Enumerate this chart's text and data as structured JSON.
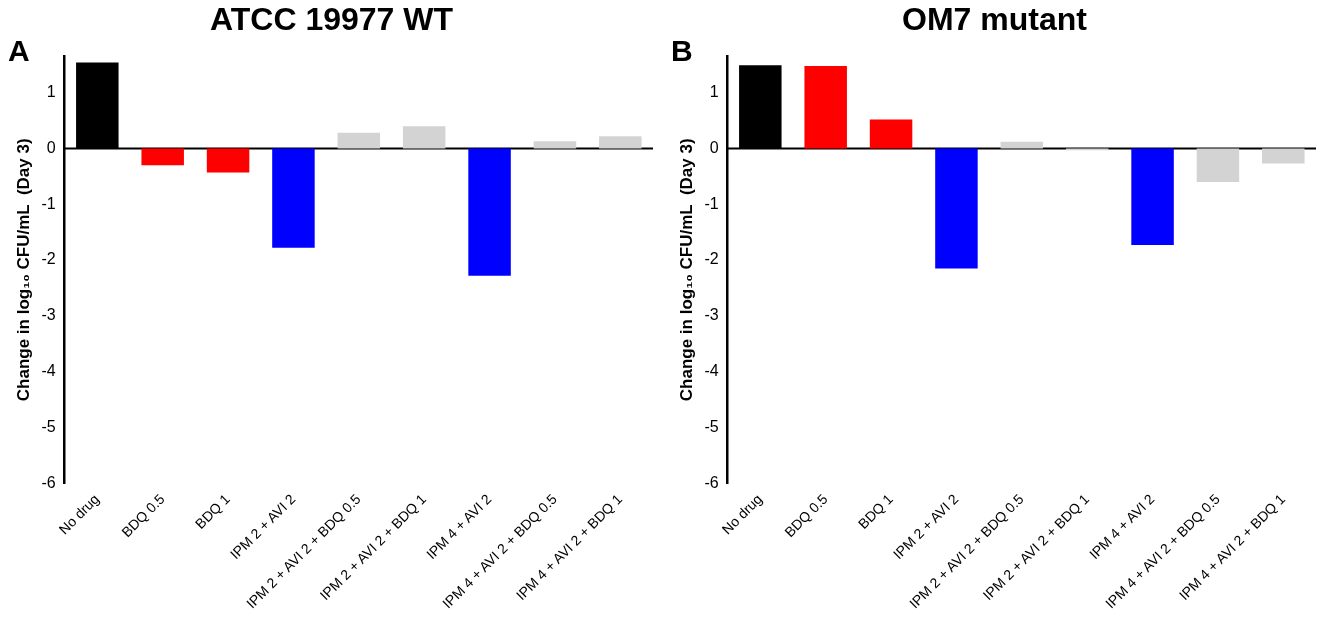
{
  "chart_data": [
    {
      "type": "bar",
      "title": "ATCC 19977 WT",
      "ylabel": "Change in log₁₀ CFU/mL  (Day 3)",
      "annotations": [
        "A"
      ],
      "categories": [
        "No drug",
        "BDQ 0.5",
        "BDQ 1",
        "IPM 2 + AVI 2",
        "IPM 2 + AVI 2 + BDQ 0.5",
        "IPM 2 + AVI 2 + BDQ 1",
        "IPM 4 + AVI 2",
        "IPM 4 + AVI 2 + BDQ 0.5",
        "IPM 4 + AVI 2 + BDQ 1"
      ],
      "values": [
        1.54,
        -0.3,
        -0.43,
        -1.78,
        0.28,
        0.4,
        -2.28,
        0.13,
        0.22
      ],
      "ref_lines": [
        {
          "axis": "y",
          "value": 0,
          "color": "#000000"
        }
      ],
      "colors": [
        "#000000",
        "#ff0000",
        "#ff0000",
        "#0000ff",
        "#d3d3d3",
        "#d3d3d3",
        "#0000ff",
        "#d3d3d3",
        "#d3d3d3"
      ],
      "ylim": [
        -6,
        1.65
      ],
      "yticks": [
        -6,
        -5,
        -4,
        -3,
        -2,
        -1,
        0,
        1
      ],
      "grid": false,
      "legend": false
    },
    {
      "type": "bar",
      "title": "OM7 mutant",
      "ylabel": "Change in log₁₀ CFU/mL  (Day 3)",
      "annotations": [
        "B"
      ],
      "categories": [
        "No drug",
        "BDQ 0.5",
        "BDQ 1",
        "IPM 2 + AVI 2",
        "IPM 2 + AVI 2 + BDQ 0.5",
        "IPM 2 + AVI 2 + BDQ 1",
        "IPM 4 + AVI 2",
        "IPM 4 + AVI 2 + BDQ 0.5",
        "IPM 4 + AVI 2 + BDQ 1"
      ],
      "values": [
        1.49,
        1.48,
        0.52,
        -2.15,
        0.12,
        -0.03,
        -1.73,
        -0.6,
        -0.27
      ],
      "ref_lines": [
        {
          "axis": "y",
          "value": 0,
          "color": "#000000"
        }
      ],
      "colors": [
        "#000000",
        "#ff0000",
        "#ff0000",
        "#0000ff",
        "#d3d3d3",
        "#d3d3d3",
        "#0000ff",
        "#d3d3d3",
        "#d3d3d3"
      ],
      "ylim": [
        -6,
        1.65
      ],
      "yticks": [
        -6,
        -5,
        -4,
        -3,
        -2,
        -1,
        0,
        1
      ],
      "grid": false,
      "legend": false
    }
  ]
}
